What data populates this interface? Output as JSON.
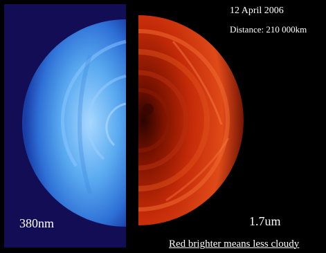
{
  "date_label": "12 April 2006",
  "distance_label": "Distance: 210 000km",
  "left_wavelength_label": "380nm",
  "right_wavelength_label": "1.7um",
  "caption": "Red brighter means less cloudy",
  "colors": {
    "left_background": "#120d55",
    "uv_hemisphere": "#52a8f0",
    "ir_hemisphere": "#c42a08",
    "text": "#ffffff"
  }
}
